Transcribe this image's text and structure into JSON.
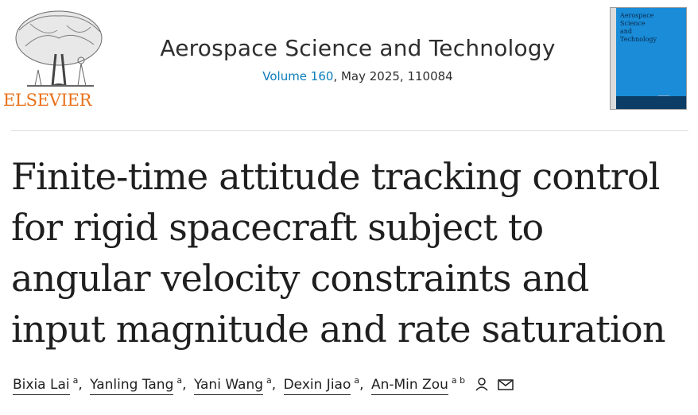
{
  "publisher": {
    "logo_text": "ELSEVIER"
  },
  "journal": {
    "title": "Aerospace Science and Technology",
    "volume_label": "Volume 160",
    "issue_rest": ", May 2025, 110084",
    "cover_title_lines": [
      "Aerospace",
      "Science",
      "and",
      "Technology"
    ]
  },
  "article": {
    "title": "Finite-time attitude tracking control for rigid spacecraft subject to angular velocity constraints and input magnitude and rate saturation"
  },
  "authors": [
    {
      "name": "Bixia Lai",
      "affiliations": "a"
    },
    {
      "name": "Yanling Tang",
      "affiliations": "a"
    },
    {
      "name": "Yani Wang",
      "affiliations": "a"
    },
    {
      "name": "Dexin Jiao",
      "affiliations": "a"
    },
    {
      "name": "An-Min Zou",
      "affiliations": "a b"
    }
  ],
  "icons": {
    "person": "person-icon",
    "email": "envelope-icon"
  },
  "colors": {
    "elsevier_orange": "#e9711c",
    "link_blue": "#0c7dbb",
    "cover_blue": "#1a8cd8"
  }
}
